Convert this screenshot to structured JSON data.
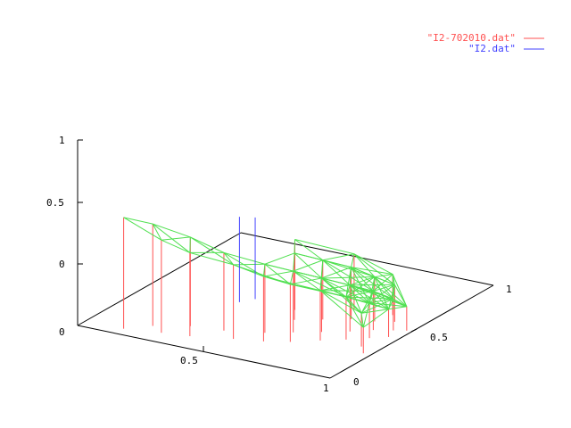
{
  "chart_data": {
    "type": "3d-impulse-surface",
    "title": "",
    "xlabel": "",
    "ylabel": "",
    "zlabel": "",
    "x_range": [
      0,
      1
    ],
    "y_range": [
      0,
      1
    ],
    "z_range": [
      0,
      1
    ],
    "x_ticks": [
      "0.5",
      "1"
    ],
    "y_ticks": [
      "0",
      "0.5",
      "1"
    ],
    "z_ticks": [
      "0",
      "0.5",
      "1"
    ],
    "legend_position": "top-right",
    "series": [
      {
        "name": "\"I2-702010.dat\"",
        "color": "#ff5050",
        "style": "impulses",
        "points": [
          {
            "x": 0.15,
            "y": 0.05,
            "z": 0.6
          },
          {
            "x": 0.22,
            "y": 0.12,
            "z": 0.55
          },
          {
            "x": 0.28,
            "y": 0.08,
            "z": 0.5
          },
          {
            "x": 0.33,
            "y": 0.18,
            "z": 0.48
          },
          {
            "x": 0.38,
            "y": 0.1,
            "z": 0.45
          },
          {
            "x": 0.45,
            "y": 0.2,
            "z": 0.42
          },
          {
            "x": 0.52,
            "y": 0.15,
            "z": 0.4
          },
          {
            "x": 0.58,
            "y": 0.25,
            "z": 0.37
          },
          {
            "x": 0.62,
            "y": 0.18,
            "z": 0.35
          },
          {
            "x": 0.66,
            "y": 0.3,
            "z": 0.33
          },
          {
            "x": 0.7,
            "y": 0.22,
            "z": 0.31
          },
          {
            "x": 0.74,
            "y": 0.35,
            "z": 0.29
          },
          {
            "x": 0.78,
            "y": 0.28,
            "z": 0.27
          },
          {
            "x": 0.82,
            "y": 0.4,
            "z": 0.25
          },
          {
            "x": 0.85,
            "y": 0.33,
            "z": 0.23
          },
          {
            "x": 0.88,
            "y": 0.45,
            "z": 0.21
          },
          {
            "x": 0.91,
            "y": 0.38,
            "z": 0.19
          },
          {
            "x": 0.94,
            "y": 0.48,
            "z": 0.17
          },
          {
            "x": 0.96,
            "y": 0.42,
            "z": 0.15
          },
          {
            "x": 0.98,
            "y": 0.5,
            "z": 0.13
          },
          {
            "x": 0.6,
            "y": 0.4,
            "z": 0.36
          },
          {
            "x": 0.68,
            "y": 0.45,
            "z": 0.32
          },
          {
            "x": 0.76,
            "y": 0.5,
            "z": 0.28
          },
          {
            "x": 0.84,
            "y": 0.52,
            "z": 0.24
          },
          {
            "x": 0.9,
            "y": 0.55,
            "z": 0.2
          },
          {
            "x": 0.55,
            "y": 0.48,
            "z": 0.38
          },
          {
            "x": 0.72,
            "y": 0.58,
            "z": 0.3
          },
          {
            "x": 0.86,
            "y": 0.6,
            "z": 0.22
          },
          {
            "x": 0.93,
            "y": 0.3,
            "z": 0.18
          },
          {
            "x": 0.97,
            "y": 0.25,
            "z": 0.14
          }
        ]
      },
      {
        "name": "\"I2.dat\"",
        "color": "#4040ff",
        "style": "impulses",
        "points": [
          {
            "x": 0.35,
            "y": 0.45,
            "z": 0.46
          },
          {
            "x": 0.38,
            "y": 0.5,
            "z": 0.44
          }
        ]
      }
    ],
    "surface_color": "#50e050"
  }
}
